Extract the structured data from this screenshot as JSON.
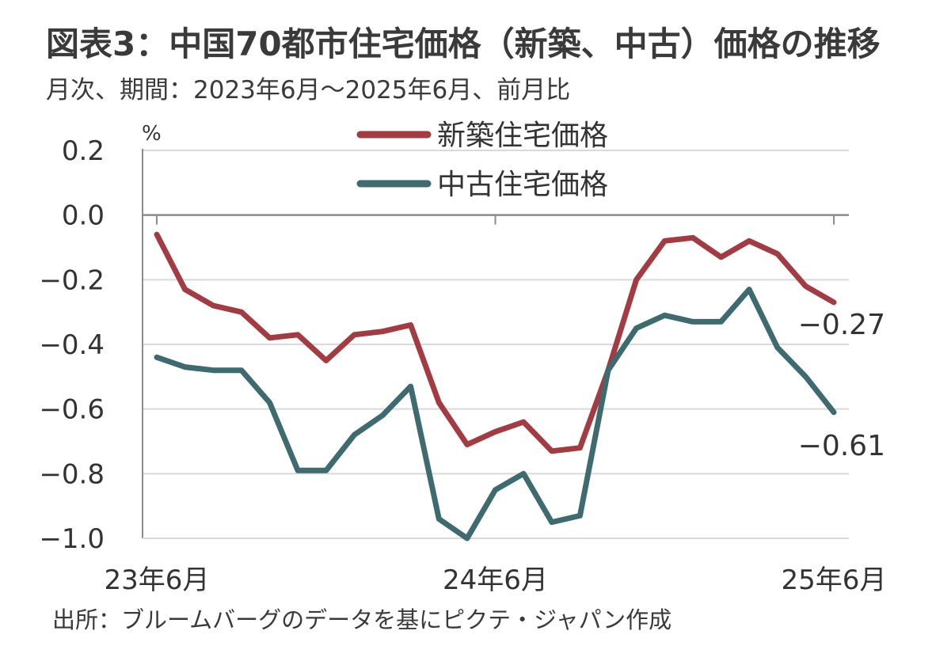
{
  "header": {
    "title": "図表3：中国70都市住宅価格（新築、中古）価格の推移",
    "subtitle": "月次、期間：2023年6月～2025年6月、前月比"
  },
  "footer": {
    "source": "出所：ブルームバーグのデータを基にピクテ・ジャパン作成"
  },
  "chart_data": {
    "type": "line",
    "unit_label": "%",
    "ylim": [
      -1.0,
      0.2
    ],
    "yticks": [
      0.2,
      0.0,
      -0.2,
      -0.4,
      -0.6,
      -0.8,
      -1.0
    ],
    "ytick_labels": [
      "0.2",
      "0.0",
      "−0.2",
      "−0.4",
      "−0.6",
      "−0.8",
      "−1.0"
    ],
    "x": [
      "2023-06",
      "2023-07",
      "2023-08",
      "2023-09",
      "2023-10",
      "2023-11",
      "2023-12",
      "2024-01",
      "2024-02",
      "2024-03",
      "2024-04",
      "2024-05",
      "2024-06",
      "2024-07",
      "2024-08",
      "2024-09",
      "2024-10",
      "2024-11",
      "2024-12",
      "2025-01",
      "2025-02",
      "2025-03",
      "2025-04",
      "2025-05",
      "2025-06"
    ],
    "xtick_labels": [
      {
        "index": 0,
        "label": "23年6月"
      },
      {
        "index": 12,
        "label": "24年6月"
      },
      {
        "index": 24,
        "label": "25年6月"
      }
    ],
    "grid": true,
    "legend_position": "top-center",
    "series": [
      {
        "name": "新築住宅価格",
        "color": "#a23b42",
        "values": [
          -0.06,
          -0.23,
          -0.28,
          -0.3,
          -0.38,
          -0.37,
          -0.45,
          -0.37,
          -0.36,
          -0.34,
          -0.58,
          -0.71,
          -0.67,
          -0.64,
          -0.73,
          -0.72,
          -0.48,
          -0.2,
          -0.08,
          -0.07,
          -0.13,
          -0.08,
          -0.12,
          -0.22,
          -0.27
        ],
        "end_label": "−0.27"
      },
      {
        "name": "中古住宅価格",
        "color": "#3d6b6f",
        "values": [
          -0.44,
          -0.47,
          -0.48,
          -0.48,
          -0.58,
          -0.79,
          -0.79,
          -0.68,
          -0.62,
          -0.53,
          -0.94,
          -1.0,
          -0.85,
          -0.8,
          -0.95,
          -0.93,
          -0.48,
          -0.35,
          -0.31,
          -0.33,
          -0.33,
          -0.23,
          -0.41,
          -0.5,
          -0.61
        ],
        "end_label": "−0.61"
      }
    ]
  }
}
